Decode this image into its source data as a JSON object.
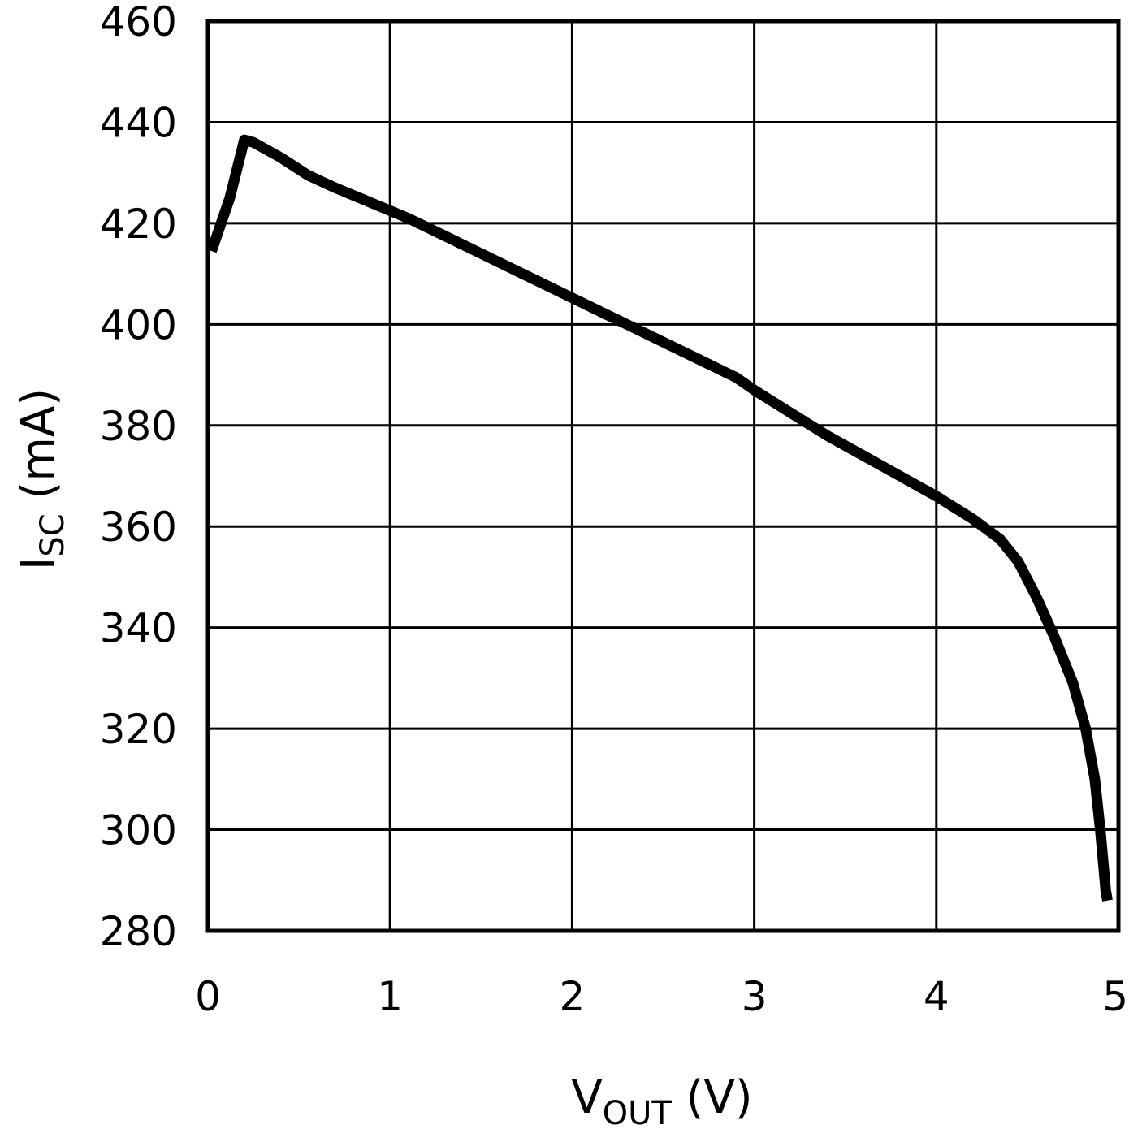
{
  "chart_data": {
    "type": "line",
    "xlabel": {
      "main": "V",
      "sub": "OUT",
      "unit": " (V)"
    },
    "ylabel": {
      "main": "I",
      "sub": "SC",
      "unit": " (mA)"
    },
    "xlim": [
      0,
      5
    ],
    "ylim": [
      280,
      460
    ],
    "x_ticks": [
      "0",
      "1",
      "2",
      "3",
      "4",
      "5"
    ],
    "y_ticks": [
      "280",
      "300",
      "320",
      "340",
      "360",
      "380",
      "400",
      "420",
      "440",
      "460"
    ],
    "grid": true,
    "colors": {
      "line": "#000000",
      "grid": "#000000",
      "background": "#ffffff"
    },
    "series": [
      {
        "x": [
          0.02,
          0.12,
          0.2,
          0.25,
          0.4,
          0.55,
          0.7,
          0.9,
          1.1,
          1.3,
          1.5,
          1.7,
          1.9,
          2.1,
          2.3,
          2.5,
          2.7,
          2.9,
          3.0,
          3.2,
          3.4,
          3.6,
          3.8,
          4.0,
          4.2,
          4.35,
          4.45,
          4.55,
          4.65,
          4.75,
          4.82,
          4.87,
          4.9,
          4.92,
          4.93,
          4.94
        ],
        "y": [
          414.5,
          425,
          436.5,
          436,
          433,
          429.5,
          427,
          424,
          421,
          417.5,
          414,
          410.5,
          407,
          403.5,
          400,
          396.5,
          393,
          389.5,
          387,
          382.5,
          378,
          374,
          370,
          366,
          361.5,
          357.5,
          353,
          346,
          338,
          329,
          320,
          310,
          300,
          292,
          288,
          286
        ]
      }
    ]
  }
}
